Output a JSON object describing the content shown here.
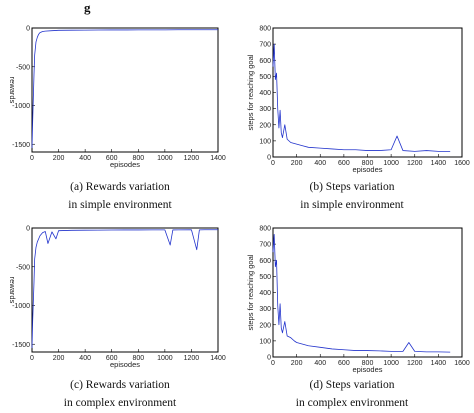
{
  "header_fragment": "g",
  "chart_data": [
    {
      "id": "a",
      "type": "line",
      "ylabel": "rewards",
      "xlabel": "episodes",
      "xlim": [
        0,
        1400
      ],
      "ylim": [
        -1600,
        0
      ],
      "xticks": [
        "0",
        "200",
        "400",
        "600",
        "800",
        "1000",
        "1200",
        "1400"
      ],
      "yticks": [
        "0",
        "-500",
        "-1000",
        "-1500"
      ],
      "caption_line1": "(a) Rewards variation",
      "caption_line2": "in simple environment",
      "series": [
        {
          "color": "#2233cc",
          "x": [
            0,
            5,
            10,
            15,
            20,
            30,
            40,
            50,
            60,
            80,
            100,
            150,
            200,
            300,
            400,
            500,
            600,
            700,
            800,
            900,
            1000,
            1100,
            1200,
            1300,
            1400
          ],
          "y": [
            -1550,
            -1200,
            -900,
            -600,
            -350,
            -180,
            -120,
            -80,
            -60,
            -45,
            -40,
            -35,
            -30,
            -28,
            -27,
            -26,
            -25,
            -25,
            -24,
            -24,
            -24,
            -23,
            -23,
            -23,
            -23
          ]
        }
      ]
    },
    {
      "id": "b",
      "type": "line",
      "ylabel": "steps for reaching goal",
      "xlabel": "episodes",
      "xlim": [
        0,
        1600
      ],
      "ylim": [
        0,
        800
      ],
      "xticks": [
        "0",
        "200",
        "400",
        "600",
        "800",
        "1000",
        "1200",
        "1400",
        "1600"
      ],
      "yticks": [
        "0",
        "100",
        "200",
        "300",
        "400",
        "500",
        "600",
        "700",
        "800"
      ],
      "caption_line1": "(b) Steps variation",
      "caption_line2": "in simple environment",
      "series": [
        {
          "color": "#2233cc",
          "x": [
            0,
            10,
            20,
            30,
            40,
            50,
            60,
            70,
            80,
            100,
            120,
            150,
            200,
            250,
            300,
            400,
            500,
            600,
            700,
            800,
            900,
            1000,
            1050,
            1100,
            1200,
            1300,
            1400,
            1500
          ],
          "y": [
            560,
            700,
            480,
            520,
            300,
            180,
            290,
            150,
            120,
            200,
            110,
            90,
            80,
            70,
            60,
            55,
            50,
            45,
            45,
            40,
            40,
            45,
            130,
            40,
            35,
            40,
            35,
            35
          ]
        }
      ]
    },
    {
      "id": "c",
      "type": "line",
      "ylabel": "rewards",
      "xlabel": "episodes",
      "xlim": [
        0,
        1400
      ],
      "ylim": [
        -1600,
        0
      ],
      "xticks": [
        "0",
        "200",
        "400",
        "600",
        "800",
        "1000",
        "1200",
        "1400"
      ],
      "yticks": [
        "0",
        "-500",
        "-1000",
        "-1500"
      ],
      "caption_line1": "(c) Rewards variation",
      "caption_line2": "in complex environment",
      "series": [
        {
          "color": "#2233cc",
          "x": [
            0,
            5,
            10,
            15,
            20,
            30,
            40,
            50,
            60,
            80,
            100,
            120,
            150,
            180,
            200,
            300,
            400,
            500,
            600,
            700,
            800,
            900,
            1000,
            1040,
            1060,
            1100,
            1200,
            1240,
            1260,
            1300,
            1400
          ],
          "y": [
            -1550,
            -1200,
            -950,
            -700,
            -400,
            -250,
            -180,
            -140,
            -100,
            -60,
            -45,
            -200,
            -50,
            -140,
            -35,
            -30,
            -28,
            -27,
            -26,
            -25,
            -25,
            -24,
            -24,
            -220,
            -25,
            -24,
            -23,
            -280,
            -24,
            -23,
            -23
          ]
        }
      ]
    },
    {
      "id": "d",
      "type": "line",
      "ylabel": "steps for reaching goal",
      "xlabel": "episodes",
      "xlim": [
        0,
        1600
      ],
      "ylim": [
        0,
        800
      ],
      "xticks": [
        "0",
        "200",
        "400",
        "600",
        "800",
        "1000",
        "1200",
        "1400",
        "1600"
      ],
      "yticks": [
        "0",
        "100",
        "200",
        "300",
        "400",
        "500",
        "600",
        "700",
        "800"
      ],
      "caption_line1": "(d) Steps variation",
      "caption_line2": "in complex environment",
      "series": [
        {
          "color": "#2233cc",
          "x": [
            0,
            10,
            20,
            30,
            40,
            50,
            60,
            70,
            80,
            100,
            120,
            150,
            180,
            200,
            250,
            300,
            400,
            500,
            600,
            700,
            800,
            900,
            1000,
            1100,
            1150,
            1200,
            1300,
            1400,
            1500
          ],
          "y": [
            650,
            760,
            560,
            600,
            320,
            200,
            330,
            180,
            150,
            220,
            130,
            120,
            100,
            90,
            80,
            70,
            60,
            50,
            45,
            40,
            40,
            38,
            35,
            35,
            90,
            35,
            32,
            32,
            30
          ]
        }
      ]
    }
  ]
}
